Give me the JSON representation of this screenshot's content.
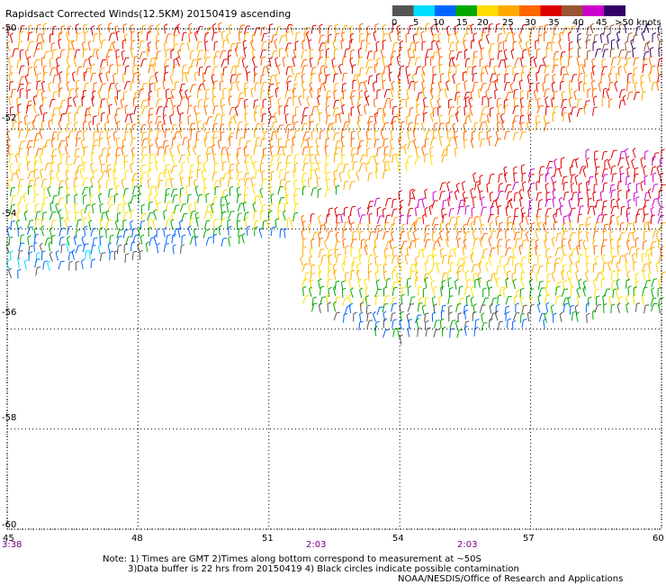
{
  "title": "Rapidsact Corrected Winds(12.5KM) 20150419 ascending",
  "legend": {
    "labels": [
      "0",
      "5",
      "10",
      "15",
      "20",
      "25",
      "30",
      "35",
      "40",
      "45",
      ">50 knots"
    ],
    "colors": [
      "#555555",
      "#00ddff",
      "#0066ff",
      "#00aa00",
      "#ffdd00",
      "#ffaa00",
      "#ff6600",
      "#dd0000",
      "#995533",
      "#cc00cc",
      "#330066"
    ]
  },
  "y_labels": [
    "-50",
    "-52",
    "-54",
    "-56",
    "-58",
    "-60"
  ],
  "x_labels": [
    "45",
    "48",
    "51",
    "54",
    "57",
    "60"
  ],
  "time_labels": [
    "3:38",
    "2:03",
    "2:03"
  ],
  "notes": {
    "line1": "Note: 1) Times are GMT 2)Times along bottom correspond to measurement at ~50S",
    "line2": "3)Data buffer is 22 hrs from 20150419 4) Black circles indicate possible contamination",
    "credit": "NOAA/NESDIS/Office of Research and Applications"
  },
  "chart_data": {
    "type": "wind-barb-map",
    "x_range": [
      45,
      60
    ],
    "y_range": [
      -60,
      -50
    ],
    "x_ticks": [
      45,
      48,
      51,
      54,
      57,
      60
    ],
    "y_ticks": [
      -50,
      -52,
      -54,
      -56,
      -58,
      -60
    ],
    "speed_bins_knots": [
      0,
      5,
      10,
      15,
      20,
      25,
      30,
      35,
      40,
      45,
      50
    ],
    "grid": "dotted",
    "swaths": [
      {
        "name": "west",
        "lon": [
          45,
          60
        ],
        "lat": [
          -55.4,
          -50
        ]
      },
      {
        "name": "east",
        "lon": [
          51.6,
          60
        ],
        "lat": [
          -56.5,
          -52.7
        ]
      }
    ]
  }
}
